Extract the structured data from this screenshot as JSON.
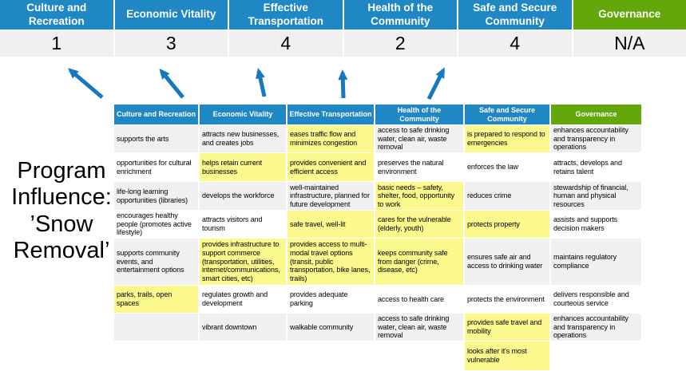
{
  "title": "Program Influence: ’Snow Removal’",
  "colors": {
    "header_blue": "#1f87c4",
    "header_green": "#64a70b",
    "highlight_yellow": "#fbf88d",
    "row_gray": "#f0f0f0",
    "row_white": "#ffffff",
    "score_row_bg": "#f0f0f0",
    "arrow_blue": "#1878bf"
  },
  "summary": {
    "columns": [
      {
        "label": "Culture and Recreation",
        "score": "1",
        "color": "#1f87c4"
      },
      {
        "label": "Economic Vitality",
        "score": "3",
        "color": "#1f87c4"
      },
      {
        "label": "Effective Transportation",
        "score": "4",
        "color": "#1f87c4"
      },
      {
        "label": "Health of the Community",
        "score": "2",
        "color": "#1f87c4"
      },
      {
        "label": "Safe and Secure Community",
        "score": "4",
        "color": "#1f87c4"
      },
      {
        "label": "Governance",
        "score": "N/A",
        "color": "#64a70b"
      }
    ]
  },
  "matrix": {
    "headers": [
      {
        "label": "Culture and Recreation",
        "color": "#1f87c4"
      },
      {
        "label": "Economic Vitality",
        "color": "#1f87c4"
      },
      {
        "label": "Effective Transportation",
        "color": "#1f87c4"
      },
      {
        "label": "Health of the Community",
        "color": "#1f87c4"
      },
      {
        "label": "Safe and Secure Community",
        "color": "#1f87c4"
      },
      {
        "label": "Governance",
        "color": "#64a70b"
      }
    ],
    "rows": [
      {
        "band": "gray",
        "cells": [
          {
            "text": "supports the arts",
            "highlight": false
          },
          {
            "text": "attracts new businesses, and creates jobs",
            "highlight": false
          },
          {
            "text": "eases traffic flow and minimizes congestion",
            "highlight": true
          },
          {
            "text": "access to safe drinking water, clean air, waste removal",
            "highlight": false
          },
          {
            "text": "is prepared to respond to emergencies",
            "highlight": true
          },
          {
            "text": "enhances accountability and transparency in operations",
            "highlight": false
          }
        ]
      },
      {
        "band": "white",
        "cells": [
          {
            "text": "opportunities for cultural enrichment",
            "highlight": false
          },
          {
            "text": "helps retain current businesses",
            "highlight": true
          },
          {
            "text": "provides convenient and efficient access",
            "highlight": true
          },
          {
            "text": "preserves the natural environment",
            "highlight": false
          },
          {
            "text": "enforces the law",
            "highlight": false
          },
          {
            "text": "attracts, develops and retains talent",
            "highlight": false
          }
        ]
      },
      {
        "band": "gray",
        "cells": [
          {
            "text": "life-long learning opportunities (libraries)",
            "highlight": false
          },
          {
            "text": "develops the workforce",
            "highlight": false
          },
          {
            "text": "well-maintained infrastructure, planned for future development",
            "highlight": false
          },
          {
            "text": "basic needs – safety, shelter, food, opportunity to work",
            "highlight": true
          },
          {
            "text": "reduces crime",
            "highlight": false
          },
          {
            "text": "stewardship of financial, human and physical resources",
            "highlight": false
          }
        ]
      },
      {
        "band": "white",
        "cells": [
          {
            "text": "encourages healthy people (promotes active lifestyle)",
            "highlight": false
          },
          {
            "text": "attracts visitors and tourism",
            "highlight": false
          },
          {
            "text": "safe travel, well-lit",
            "highlight": true
          },
          {
            "text": "cares for the vulnerable (elderly, youth)",
            "highlight": true
          },
          {
            "text": "protects property",
            "highlight": true
          },
          {
            "text": "assists and supports decision makers",
            "highlight": false
          }
        ]
      },
      {
        "band": "gray",
        "cells": [
          {
            "text": "supports community events, and entertainment options",
            "highlight": false
          },
          {
            "text": "provides infrastructure to support commerce (transportation, utilities, internet/communications, smart cities, etc)",
            "highlight": true
          },
          {
            "text": "provides access to multi-modal travel options (transit, public transportation, bike lanes, trails)",
            "highlight": true
          },
          {
            "text": "keeps community safe from danger (crime, disease, etc)",
            "highlight": true
          },
          {
            "text": "ensures safe air and access to drinking water",
            "highlight": false
          },
          {
            "text": "maintains regulatory compliance",
            "highlight": false
          }
        ]
      },
      {
        "band": "white",
        "cells": [
          {
            "text": "parks, trails, open spaces",
            "highlight": true
          },
          {
            "text": "regulates growth and development",
            "highlight": false
          },
          {
            "text": "provides adequate parking",
            "highlight": false
          },
          {
            "text": "access to health care",
            "highlight": false
          },
          {
            "text": "protects the environment",
            "highlight": false
          },
          {
            "text": "delivers responsible and courteous service",
            "highlight": false
          }
        ]
      },
      {
        "band": "gray",
        "cells": [
          {
            "text": "",
            "highlight": false
          },
          {
            "text": "vibrant downtown",
            "highlight": false
          },
          {
            "text": "walkable community",
            "highlight": false
          },
          {
            "text": "access to safe drinking water, clean air, waste removal",
            "highlight": false
          },
          {
            "text": "provides safe travel and mobility",
            "highlight": true
          },
          {
            "text": "enhances accountability and transparency in operations",
            "highlight": false
          }
        ]
      },
      {
        "band": "white",
        "cells": [
          {
            "text": "",
            "highlight": false
          },
          {
            "text": "",
            "highlight": false
          },
          {
            "text": "",
            "highlight": false
          },
          {
            "text": "",
            "highlight": false
          },
          {
            "text": "looks after it's most vulnerable",
            "highlight": true
          },
          {
            "text": "",
            "highlight": false
          }
        ]
      }
    ]
  }
}
